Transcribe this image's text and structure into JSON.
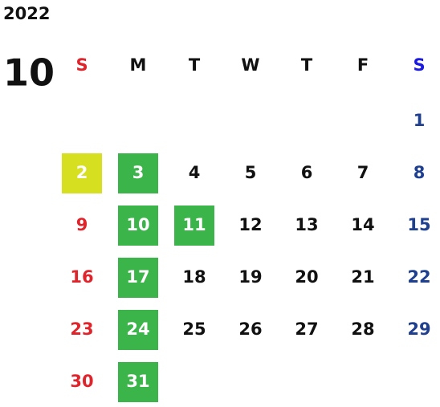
{
  "year": "2022",
  "month": "10",
  "columns": [
    {
      "label": "S",
      "color": "#e0242b",
      "day_color": "#e0242b"
    },
    {
      "label": "M",
      "color": "#111111",
      "day_color": "#111111"
    },
    {
      "label": "T",
      "color": "#111111",
      "day_color": "#111111"
    },
    {
      "label": "W",
      "color": "#111111",
      "day_color": "#111111"
    },
    {
      "label": "T",
      "color": "#111111",
      "day_color": "#111111"
    },
    {
      "label": "F",
      "color": "#111111",
      "day_color": "#111111"
    },
    {
      "label": "S",
      "color": "#1a1ae0",
      "day_color": "#1f3f8f"
    }
  ],
  "weeks": [
    [
      null,
      null,
      null,
      null,
      null,
      null,
      {
        "day": 1
      }
    ],
    [
      {
        "day": 2,
        "highlight": "#d6e021"
      },
      {
        "day": 3,
        "highlight": "#3bb54a"
      },
      {
        "day": 4
      },
      {
        "day": 5
      },
      {
        "day": 6
      },
      {
        "day": 7
      },
      {
        "day": 8
      }
    ],
    [
      {
        "day": 9
      },
      {
        "day": 10,
        "highlight": "#3bb54a"
      },
      {
        "day": 11,
        "highlight": "#3bb54a"
      },
      {
        "day": 12
      },
      {
        "day": 13
      },
      {
        "day": 14
      },
      {
        "day": 15
      }
    ],
    [
      {
        "day": 16
      },
      {
        "day": 17,
        "highlight": "#3bb54a"
      },
      {
        "day": 18
      },
      {
        "day": 19
      },
      {
        "day": 20
      },
      {
        "day": 21
      },
      {
        "day": 22
      }
    ],
    [
      {
        "day": 23
      },
      {
        "day": 24,
        "highlight": "#3bb54a"
      },
      {
        "day": 25
      },
      {
        "day": 26
      },
      {
        "day": 27
      },
      {
        "day": 28
      },
      {
        "day": 29
      }
    ],
    [
      {
        "day": 30
      },
      {
        "day": 31,
        "highlight": "#3bb54a"
      },
      null,
      null,
      null,
      null,
      null
    ]
  ]
}
